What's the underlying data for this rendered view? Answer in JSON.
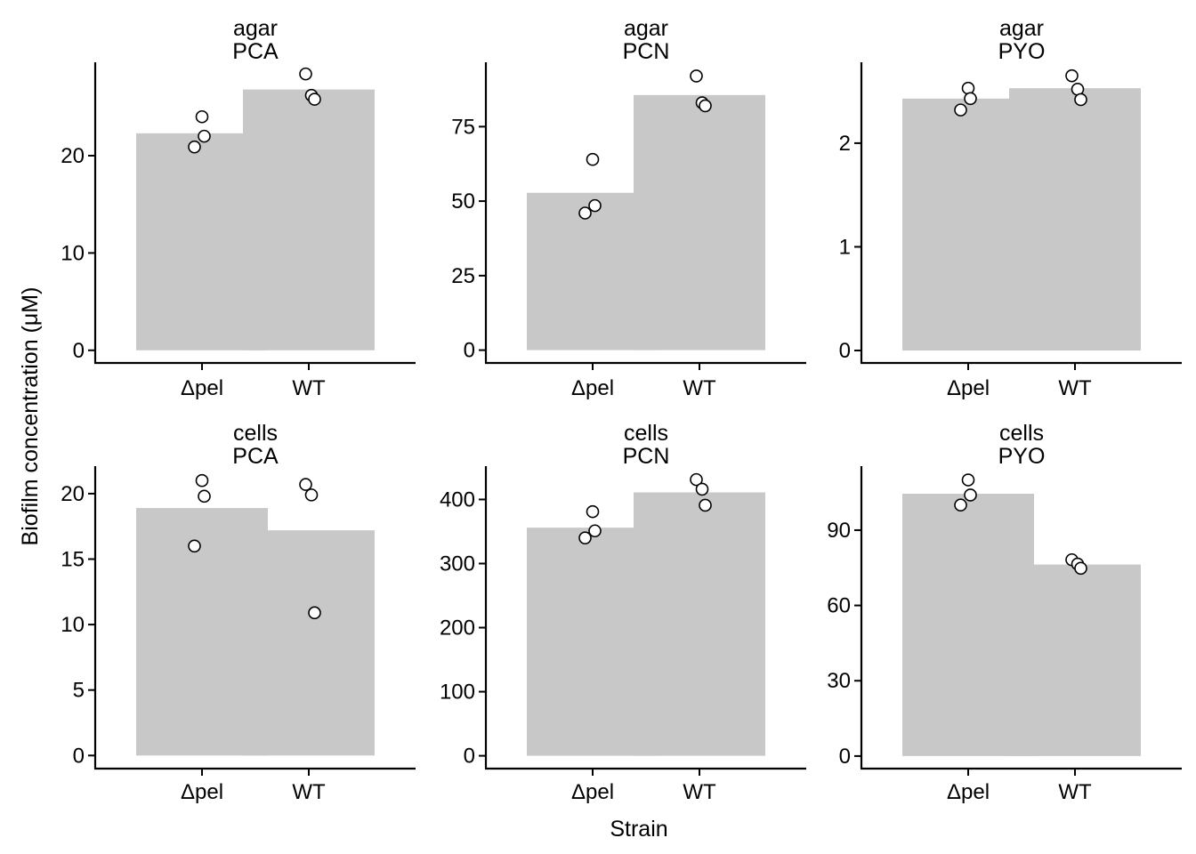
{
  "figure": {
    "xlabel": "Strain",
    "ylabel": "Biofilm concentration (μM)",
    "bar_color": "#c8c8c8",
    "point_stroke": "#000000",
    "point_fill": "#ffffff"
  },
  "chart_data": [
    {
      "type": "bar",
      "strip": [
        "agar",
        "PCA"
      ],
      "categories": [
        "Δpel",
        "WT"
      ],
      "values": [
        22.3,
        26.8
      ],
      "points": [
        [
          24.0,
          22.0,
          20.9
        ],
        [
          28.4,
          26.2,
          25.8
        ]
      ],
      "yticks": [
        0,
        10,
        20
      ],
      "ylim": [
        -1.3,
        29.6
      ]
    },
    {
      "type": "bar",
      "strip": [
        "agar",
        "PCN"
      ],
      "categories": [
        "Δpel",
        "WT"
      ],
      "values": [
        52.8,
        85.6
      ],
      "points": [
        [
          64.0,
          48.5,
          46.0
        ],
        [
          92.0,
          83.0,
          82.0
        ]
      ],
      "yticks": [
        0,
        25,
        50,
        75
      ],
      "ylim": [
        -4.3,
        96.6
      ]
    },
    {
      "type": "bar",
      "strip": [
        "agar",
        "PYO"
      ],
      "categories": [
        "Δpel",
        "WT"
      ],
      "values": [
        2.43,
        2.53
      ],
      "points": [
        [
          2.53,
          2.43,
          2.32
        ],
        [
          2.65,
          2.52,
          2.42
        ]
      ],
      "yticks": [
        0,
        1,
        2
      ],
      "ylim": [
        -0.12,
        2.78
      ]
    },
    {
      "type": "bar",
      "strip": [
        "cells",
        "PCA"
      ],
      "categories": [
        "Δpel",
        "WT"
      ],
      "values": [
        18.9,
        17.2
      ],
      "points": [
        [
          21.0,
          19.8,
          16.0
        ],
        [
          20.7,
          19.9,
          10.9
        ]
      ],
      "yticks": [
        0,
        5,
        10,
        15,
        20
      ],
      "ylim": [
        -1.0,
        22.1
      ]
    },
    {
      "type": "bar",
      "strip": [
        "cells",
        "PCN"
      ],
      "categories": [
        "Δpel",
        "WT"
      ],
      "values": [
        356,
        411
      ],
      "points": [
        [
          381,
          351,
          340
        ],
        [
          431,
          416,
          391
        ]
      ],
      "yticks": [
        0,
        100,
        200,
        300,
        400
      ],
      "ylim": [
        -20,
        452
      ]
    },
    {
      "type": "bar",
      "strip": [
        "cells",
        "PYO"
      ],
      "categories": [
        "Δpel",
        "WT"
      ],
      "values": [
        104.5,
        76.3
      ],
      "points": [
        [
          110.0,
          104.0,
          100.0
        ],
        [
          78.2,
          76.5,
          74.8
        ]
      ],
      "yticks": [
        0,
        30,
        60,
        90
      ],
      "ylim": [
        -5,
        115.5
      ]
    }
  ]
}
